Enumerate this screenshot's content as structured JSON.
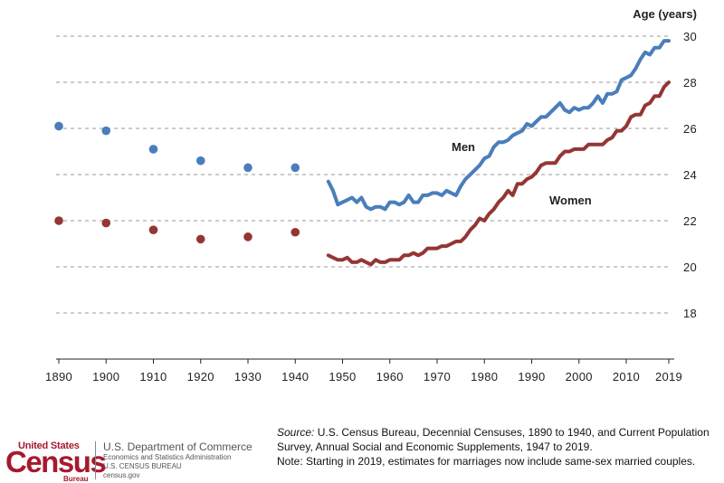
{
  "chart_data": {
    "type": "line",
    "ylabel": "Age (years)",
    "ylim": [
      16,
      30
    ],
    "xlim": [
      1890,
      2019
    ],
    "y_ticks": [
      18,
      20,
      22,
      24,
      26,
      28,
      30
    ],
    "x_ticks": [
      1890,
      1900,
      1910,
      1920,
      1930,
      1940,
      1950,
      1960,
      1970,
      1980,
      1990,
      2000,
      2010,
      2019
    ],
    "grid": "horizontal dashed",
    "colors": {
      "men": "#4a7ebb",
      "women": "#943634"
    },
    "series": [
      {
        "name": "Men",
        "label": "Men",
        "decennial_points": [
          [
            1890,
            26.1
          ],
          [
            1900,
            25.9
          ],
          [
            1910,
            25.1
          ],
          [
            1920,
            24.6
          ],
          [
            1930,
            24.3
          ],
          [
            1940,
            24.3
          ]
        ],
        "annual_line": [
          [
            1947,
            23.7
          ],
          [
            1948,
            23.3
          ],
          [
            1949,
            22.7
          ],
          [
            1950,
            22.8
          ],
          [
            1951,
            22.9
          ],
          [
            1952,
            23.0
          ],
          [
            1953,
            22.8
          ],
          [
            1954,
            23.0
          ],
          [
            1955,
            22.6
          ],
          [
            1956,
            22.5
          ],
          [
            1957,
            22.6
          ],
          [
            1958,
            22.6
          ],
          [
            1959,
            22.5
          ],
          [
            1960,
            22.8
          ],
          [
            1961,
            22.8
          ],
          [
            1962,
            22.7
          ],
          [
            1963,
            22.8
          ],
          [
            1964,
            23.1
          ],
          [
            1965,
            22.8
          ],
          [
            1966,
            22.8
          ],
          [
            1967,
            23.1
          ],
          [
            1968,
            23.1
          ],
          [
            1969,
            23.2
          ],
          [
            1970,
            23.2
          ],
          [
            1971,
            23.1
          ],
          [
            1972,
            23.3
          ],
          [
            1973,
            23.2
          ],
          [
            1974,
            23.1
          ],
          [
            1975,
            23.5
          ],
          [
            1976,
            23.8
          ],
          [
            1977,
            24.0
          ],
          [
            1978,
            24.2
          ],
          [
            1979,
            24.4
          ],
          [
            1980,
            24.7
          ],
          [
            1981,
            24.8
          ],
          [
            1982,
            25.2
          ],
          [
            1983,
            25.4
          ],
          [
            1984,
            25.4
          ],
          [
            1985,
            25.5
          ],
          [
            1986,
            25.7
          ],
          [
            1987,
            25.8
          ],
          [
            1988,
            25.9
          ],
          [
            1989,
            26.2
          ],
          [
            1990,
            26.1
          ],
          [
            1991,
            26.3
          ],
          [
            1992,
            26.5
          ],
          [
            1993,
            26.5
          ],
          [
            1994,
            26.7
          ],
          [
            1995,
            26.9
          ],
          [
            1996,
            27.1
          ],
          [
            1997,
            26.8
          ],
          [
            1998,
            26.7
          ],
          [
            1999,
            26.9
          ],
          [
            2000,
            26.8
          ],
          [
            2001,
            26.9
          ],
          [
            2002,
            26.9
          ],
          [
            2003,
            27.1
          ],
          [
            2004,
            27.4
          ],
          [
            2005,
            27.1
          ],
          [
            2006,
            27.5
          ],
          [
            2007,
            27.5
          ],
          [
            2008,
            27.6
          ],
          [
            2009,
            28.1
          ],
          [
            2010,
            28.2
          ],
          [
            2011,
            28.3
          ],
          [
            2012,
            28.6
          ],
          [
            2013,
            29.0
          ],
          [
            2014,
            29.3
          ],
          [
            2015,
            29.2
          ],
          [
            2016,
            29.5
          ],
          [
            2017,
            29.5
          ],
          [
            2018,
            29.8
          ],
          [
            2019,
            29.8
          ]
        ]
      },
      {
        "name": "Women",
        "label": "Women",
        "decennial_points": [
          [
            1890,
            22.0
          ],
          [
            1900,
            21.9
          ],
          [
            1910,
            21.6
          ],
          [
            1920,
            21.2
          ],
          [
            1930,
            21.3
          ],
          [
            1940,
            21.5
          ]
        ],
        "annual_line": [
          [
            1947,
            20.5
          ],
          [
            1948,
            20.4
          ],
          [
            1949,
            20.3
          ],
          [
            1950,
            20.3
          ],
          [
            1951,
            20.4
          ],
          [
            1952,
            20.2
          ],
          [
            1953,
            20.2
          ],
          [
            1954,
            20.3
          ],
          [
            1955,
            20.2
          ],
          [
            1956,
            20.1
          ],
          [
            1957,
            20.3
          ],
          [
            1958,
            20.2
          ],
          [
            1959,
            20.2
          ],
          [
            1960,
            20.3
          ],
          [
            1961,
            20.3
          ],
          [
            1962,
            20.3
          ],
          [
            1963,
            20.5
          ],
          [
            1964,
            20.5
          ],
          [
            1965,
            20.6
          ],
          [
            1966,
            20.5
          ],
          [
            1967,
            20.6
          ],
          [
            1968,
            20.8
          ],
          [
            1969,
            20.8
          ],
          [
            1970,
            20.8
          ],
          [
            1971,
            20.9
          ],
          [
            1972,
            20.9
          ],
          [
            1973,
            21.0
          ],
          [
            1974,
            21.1
          ],
          [
            1975,
            21.1
          ],
          [
            1976,
            21.3
          ],
          [
            1977,
            21.6
          ],
          [
            1978,
            21.8
          ],
          [
            1979,
            22.1
          ],
          [
            1980,
            22.0
          ],
          [
            1981,
            22.3
          ],
          [
            1982,
            22.5
          ],
          [
            1983,
            22.8
          ],
          [
            1984,
            23.0
          ],
          [
            1985,
            23.3
          ],
          [
            1986,
            23.1
          ],
          [
            1987,
            23.6
          ],
          [
            1988,
            23.6
          ],
          [
            1989,
            23.8
          ],
          [
            1990,
            23.9
          ],
          [
            1991,
            24.1
          ],
          [
            1992,
            24.4
          ],
          [
            1993,
            24.5
          ],
          [
            1994,
            24.5
          ],
          [
            1995,
            24.5
          ],
          [
            1996,
            24.8
          ],
          [
            1997,
            25.0
          ],
          [
            1998,
            25.0
          ],
          [
            1999,
            25.1
          ],
          [
            2000,
            25.1
          ],
          [
            2001,
            25.1
          ],
          [
            2002,
            25.3
          ],
          [
            2003,
            25.3
          ],
          [
            2004,
            25.3
          ],
          [
            2005,
            25.3
          ],
          [
            2006,
            25.5
          ],
          [
            2007,
            25.6
          ],
          [
            2008,
            25.9
          ],
          [
            2009,
            25.9
          ],
          [
            2010,
            26.1
          ],
          [
            2011,
            26.5
          ],
          [
            2012,
            26.6
          ],
          [
            2013,
            26.6
          ],
          [
            2014,
            27.0
          ],
          [
            2015,
            27.1
          ],
          [
            2016,
            27.4
          ],
          [
            2017,
            27.4
          ],
          [
            2018,
            27.8
          ],
          [
            2019,
            28.0
          ]
        ]
      }
    ]
  },
  "footer": {
    "source_label": "Source:",
    "source_text": " U.S. Census Bureau, Decennial Censuses, 1890 to 1940, and Current Population",
    "source_text_2": "Survey, Annual Social and Economic Supplements, 1947 to 2019.",
    "note": "Note: Starting in 2019, estimates for marriages now include same-sex married couples."
  },
  "logo": {
    "top": "United States",
    "main": "Census",
    "sub": "Bureau"
  },
  "department": {
    "name": "U.S. Department of Commerce",
    "line1": "Economics and Statistics Administration",
    "line2": "U.S. CENSUS BUREAU",
    "line3": "census.gov"
  }
}
